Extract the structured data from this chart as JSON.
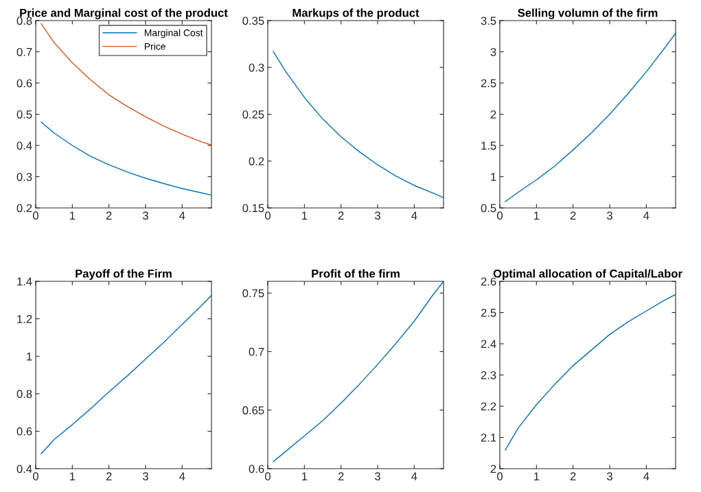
{
  "chart_data": [
    {
      "type": "line",
      "title": "Price and Marginal cost of the product",
      "x": [
        0.15,
        0.5,
        1,
        1.5,
        2,
        2.5,
        3,
        3.5,
        4,
        4.5,
        4.8
      ],
      "legend": "top right",
      "series": [
        {
          "name": "Marginal Cost",
          "color": "#0072bd",
          "values": [
            0.475,
            0.44,
            0.4,
            0.365,
            0.338,
            0.315,
            0.295,
            0.278,
            0.262,
            0.249,
            0.241
          ]
        },
        {
          "name": "Price",
          "color": "#d95319",
          "values": [
            0.79,
            0.73,
            0.665,
            0.61,
            0.562,
            0.525,
            0.492,
            0.462,
            0.436,
            0.413,
            0.401
          ]
        }
      ],
      "xlim": [
        0,
        4.8
      ],
      "xticks": [
        0,
        1,
        2,
        3,
        4
      ],
      "ylim": [
        0.2,
        0.8
      ],
      "yticks": [
        0.2,
        0.3,
        0.4,
        0.5,
        0.6,
        0.7,
        0.8
      ]
    },
    {
      "type": "line",
      "title": "Markups of the product",
      "x": [
        0.15,
        0.5,
        1,
        1.5,
        2,
        2.5,
        3,
        3.5,
        4,
        4.5,
        4.8
      ],
      "series": [
        {
          "color": "#0072bd",
          "values": [
            0.317,
            0.295,
            0.268,
            0.245,
            0.226,
            0.21,
            0.196,
            0.184,
            0.174,
            0.166,
            0.161
          ]
        }
      ],
      "xlim": [
        0,
        4.8
      ],
      "xticks": [
        0,
        1,
        2,
        3,
        4
      ],
      "ylim": [
        0.15,
        0.35
      ],
      "yticks": [
        0.15,
        0.2,
        0.25,
        0.3,
        0.35
      ]
    },
    {
      "type": "line",
      "title": "Selling volumn of the firm",
      "x": [
        0.15,
        0.5,
        1,
        1.5,
        2,
        2.5,
        3,
        3.5,
        4,
        4.5,
        4.8
      ],
      "series": [
        {
          "color": "#0072bd",
          "values": [
            0.6,
            0.75,
            0.95,
            1.17,
            1.43,
            1.7,
            2.0,
            2.33,
            2.68,
            3.06,
            3.3
          ]
        }
      ],
      "xlim": [
        0,
        4.8
      ],
      "xticks": [
        0,
        1,
        2,
        3,
        4
      ],
      "ylim": [
        0.5,
        3.5
      ],
      "yticks": [
        0.5,
        1,
        1.5,
        2,
        2.5,
        3,
        3.5
      ]
    },
    {
      "type": "line",
      "title": "Payoff of the Firm",
      "x": [
        0.15,
        0.5,
        1,
        1.5,
        2,
        2.5,
        3,
        3.5,
        4,
        4.5,
        4.8
      ],
      "series": [
        {
          "color": "#0072bd",
          "values": [
            0.48,
            0.555,
            0.635,
            0.72,
            0.81,
            0.895,
            0.985,
            1.075,
            1.17,
            1.265,
            1.325
          ]
        }
      ],
      "xlim": [
        0,
        4.8
      ],
      "xticks": [
        0,
        1,
        2,
        3,
        4
      ],
      "ylim": [
        0.4,
        1.4
      ],
      "yticks": [
        0.4,
        0.6,
        0.8,
        1,
        1.2,
        1.4
      ]
    },
    {
      "type": "line",
      "title": "Profit of the firm",
      "x": [
        0.15,
        0.5,
        1,
        1.5,
        2,
        2.5,
        3,
        3.5,
        4,
        4.5,
        4.8
      ],
      "series": [
        {
          "color": "#0072bd",
          "values": [
            0.606,
            0.615,
            0.628,
            0.641,
            0.656,
            0.672,
            0.689,
            0.707,
            0.726,
            0.748,
            0.76
          ]
        }
      ],
      "xlim": [
        0,
        4.8
      ],
      "xticks": [
        0,
        1,
        2,
        3,
        4
      ],
      "ylim": [
        0.6,
        0.76
      ],
      "yticks": [
        0.6,
        0.65,
        0.7,
        0.75
      ]
    },
    {
      "type": "line",
      "title": "Optimal allocation of Capital/Labor",
      "x": [
        0.15,
        0.5,
        1,
        1.5,
        2,
        2.5,
        3,
        3.5,
        4,
        4.5,
        4.8
      ],
      "series": [
        {
          "color": "#0072bd",
          "values": [
            2.06,
            2.13,
            2.205,
            2.27,
            2.33,
            2.38,
            2.43,
            2.47,
            2.505,
            2.54,
            2.558
          ]
        }
      ],
      "xlim": [
        0,
        4.8
      ],
      "xticks": [
        0,
        1,
        2,
        3,
        4
      ],
      "ylim": [
        2,
        2.6
      ],
      "yticks": [
        2,
        2.1,
        2.2,
        2.3,
        2.4,
        2.5,
        2.6
      ]
    }
  ]
}
